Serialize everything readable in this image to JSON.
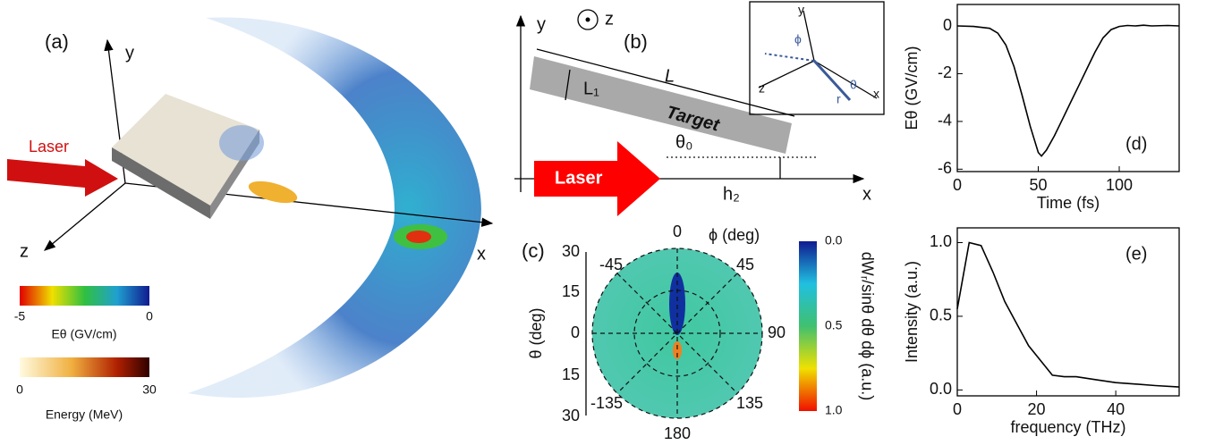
{
  "panels": {
    "a": {
      "label": "(a)",
      "y": "y",
      "z": "z",
      "x": "x",
      "laser": "Laser",
      "cbar1_min": "-5",
      "cbar1_max": "0",
      "cbar1_title": "Eθ (GV/cm)",
      "cbar2_min": "0",
      "cbar2_max": "30",
      "cbar2_title": "Energy (MeV)"
    },
    "b": {
      "y": "y",
      "z": "z",
      "label": "(b)",
      "L": "L",
      "L1": "L₁",
      "target": "Target",
      "theta0": "θ₀",
      "laser": "Laser",
      "h2": "h₂",
      "x": "x",
      "inset": {
        "y": "y",
        "phi": "ϕ",
        "z": "z",
        "theta": "θ",
        "r": "r",
        "x": "x"
      }
    },
    "c": {
      "label": "(c)",
      "phi_title": "ϕ (deg)",
      "phi_0": "0",
      "phi_m45": "-45",
      "phi_45": "45",
      "phi_90": "90",
      "phi_m135": "-135",
      "phi_135": "135",
      "phi_180": "180",
      "theta_title": "θ (deg)",
      "theta_ticks": [
        "30",
        "15",
        "0",
        "15",
        "30"
      ],
      "cbar_ticks": [
        "0.0",
        "0.5",
        "1.0"
      ],
      "cbar_title": "dWᵣ/sinθ dθ dϕ (a.u.)"
    }
  },
  "chart_data": [
    {
      "type": "line",
      "annotation": "(d)",
      "xlabel": "Time (fs)",
      "ylabel": "Eθ (GV/cm)",
      "color": "#000000",
      "x": [
        0,
        10,
        20,
        25,
        30,
        35,
        40,
        45,
        50,
        52,
        55,
        60,
        65,
        70,
        75,
        80,
        85,
        90,
        95,
        100,
        105,
        110,
        115,
        120,
        130,
        137
      ],
      "values": [
        0,
        -0.02,
        -0.1,
        -0.3,
        -0.8,
        -1.7,
        -2.9,
        -4.2,
        -5.3,
        -5.45,
        -5.2,
        -4.6,
        -3.9,
        -3.2,
        -2.5,
        -1.8,
        -1.1,
        -0.5,
        -0.15,
        -0.02,
        0.02,
        0,
        0.03,
        0,
        0.02,
        0
      ],
      "xlim": [
        0,
        137
      ],
      "ylim": [
        -6.1,
        0.9
      ],
      "xticks": [
        0,
        50,
        100
      ],
      "yticks": [
        0,
        -2,
        -4,
        -6
      ]
    },
    {
      "type": "line",
      "annotation": "(e)",
      "xlabel": "frequency (THz)",
      "ylabel": "Intensity (a.u.)",
      "color": "#000000",
      "x": [
        0,
        3,
        6,
        9,
        12,
        15,
        18,
        21,
        24,
        27,
        30,
        35,
        40,
        45,
        50,
        56
      ],
      "values": [
        0.55,
        1.0,
        0.98,
        0.8,
        0.6,
        0.45,
        0.3,
        0.2,
        0.1,
        0.09,
        0.09,
        0.07,
        0.05,
        0.04,
        0.03,
        0.02
      ],
      "xlim": [
        0,
        56
      ],
      "ylim": [
        -0.04,
        1.1
      ],
      "xticks": [
        0,
        20,
        40
      ],
      "yticks": [
        {
          "value": 0,
          "label": "0.0"
        },
        {
          "value": 0.5,
          "label": "0.5"
        },
        {
          "value": 1,
          "label": "1.0"
        }
      ]
    }
  ]
}
